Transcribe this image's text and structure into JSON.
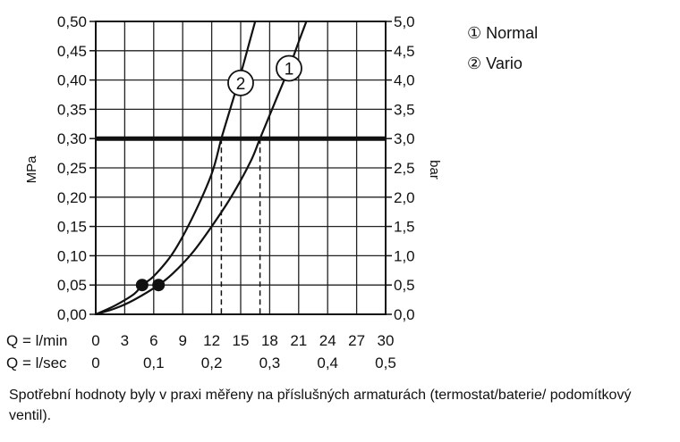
{
  "chart_data": {
    "type": "line",
    "x_axis_rows": [
      {
        "label": "Q = l/min",
        "ticks": [
          {
            "x": 0,
            "label": "0"
          },
          {
            "x": 3,
            "label": "3"
          },
          {
            "x": 6,
            "label": "6"
          },
          {
            "x": 9,
            "label": "9"
          },
          {
            "x": 12,
            "label": "12"
          },
          {
            "x": 15,
            "label": "15"
          },
          {
            "x": 18,
            "label": "18"
          },
          {
            "x": 21,
            "label": "21"
          },
          {
            "x": 24,
            "label": "24"
          },
          {
            "x": 27,
            "label": "27"
          },
          {
            "x": 30,
            "label": "30"
          }
        ]
      },
      {
        "label": "Q = l/sec",
        "ticks": [
          {
            "x": 0,
            "label": "0"
          },
          {
            "x": 6,
            "label": "0,1"
          },
          {
            "x": 12,
            "label": "0,2"
          },
          {
            "x": 18,
            "label": "0,3"
          },
          {
            "x": 24,
            "label": "0,4"
          },
          {
            "x": 30,
            "label": "0,5"
          }
        ]
      }
    ],
    "xlim": [
      0,
      30
    ],
    "ylim": [
      0,
      0.5
    ],
    "y_left": {
      "label": "MPa",
      "ticks": [
        {
          "y": 0,
          "label": "0,00"
        },
        {
          "y": 0.05,
          "label": "0,05"
        },
        {
          "y": 0.1,
          "label": "0,10"
        },
        {
          "y": 0.15,
          "label": "0,15"
        },
        {
          "y": 0.2,
          "label": "0,20"
        },
        {
          "y": 0.25,
          "label": "0,25"
        },
        {
          "y": 0.3,
          "label": "0,30"
        },
        {
          "y": 0.35,
          "label": "0,35"
        },
        {
          "y": 0.4,
          "label": "0,40"
        },
        {
          "y": 0.45,
          "label": "0,45"
        },
        {
          "y": 0.5,
          "label": "0,50"
        }
      ]
    },
    "y_right": {
      "label": "bar",
      "ticks": [
        {
          "y": 0,
          "label": "0,0"
        },
        {
          "y": 0.05,
          "label": "0,5"
        },
        {
          "y": 0.1,
          "label": "1,0"
        },
        {
          "y": 0.15,
          "label": "1,5"
        },
        {
          "y": 0.2,
          "label": "2,0"
        },
        {
          "y": 0.25,
          "label": "2,5"
        },
        {
          "y": 0.3,
          "label": "3,0"
        },
        {
          "y": 0.35,
          "label": "3,5"
        },
        {
          "y": 0.4,
          "label": "4,0"
        },
        {
          "y": 0.45,
          "label": "4,5"
        },
        {
          "y": 0.5,
          "label": "5,0"
        }
      ]
    },
    "grid": true,
    "series": [
      {
        "name": "Normal",
        "marker": "1",
        "color": "#111111",
        "points": [
          {
            "x": 0,
            "y": 0
          },
          {
            "x": 2,
            "y": 0.01
          },
          {
            "x": 4,
            "y": 0.025
          },
          {
            "x": 6.5,
            "y": 0.05
          },
          {
            "x": 8,
            "y": 0.07
          },
          {
            "x": 10,
            "y": 0.105
          },
          {
            "x": 12,
            "y": 0.15
          },
          {
            "x": 14,
            "y": 0.2
          },
          {
            "x": 16,
            "y": 0.26
          },
          {
            "x": 17,
            "y": 0.3
          },
          {
            "x": 18.5,
            "y": 0.36
          },
          {
            "x": 20,
            "y": 0.42
          },
          {
            "x": 21,
            "y": 0.465
          },
          {
            "x": 21.8,
            "y": 0.5
          }
        ],
        "label_at": {
          "x": 20,
          "y": 0.42
        }
      },
      {
        "name": "Vario",
        "marker": "2",
        "color": "#111111",
        "points": [
          {
            "x": 0,
            "y": 0
          },
          {
            "x": 2,
            "y": 0.015
          },
          {
            "x": 4,
            "y": 0.035
          },
          {
            "x": 4.8,
            "y": 0.05
          },
          {
            "x": 6,
            "y": 0.065
          },
          {
            "x": 8,
            "y": 0.105
          },
          {
            "x": 10,
            "y": 0.165
          },
          {
            "x": 12,
            "y": 0.24
          },
          {
            "x": 13,
            "y": 0.3
          },
          {
            "x": 14,
            "y": 0.355
          },
          {
            "x": 15,
            "y": 0.41
          },
          {
            "x": 16,
            "y": 0.47
          },
          {
            "x": 16.5,
            "y": 0.5
          }
        ],
        "label_at": {
          "x": 15,
          "y": 0.395
        }
      }
    ],
    "reference_line": {
      "y": 0.3
    },
    "dashed_drops": [
      13,
      17
    ],
    "highlight_points": [
      {
        "x": 4.8,
        "y": 0.05
      },
      {
        "x": 6.5,
        "y": 0.05
      }
    ],
    "legend": {
      "position": "top-right",
      "items": [
        {
          "marker": "①",
          "label": "Normal"
        },
        {
          "marker": "②",
          "label": "Vario"
        }
      ]
    },
    "caption": "Spotřební hodnoty byly v praxi měřeny na příslušných armaturách (termostat/baterie/ podomítkový ventil)."
  }
}
